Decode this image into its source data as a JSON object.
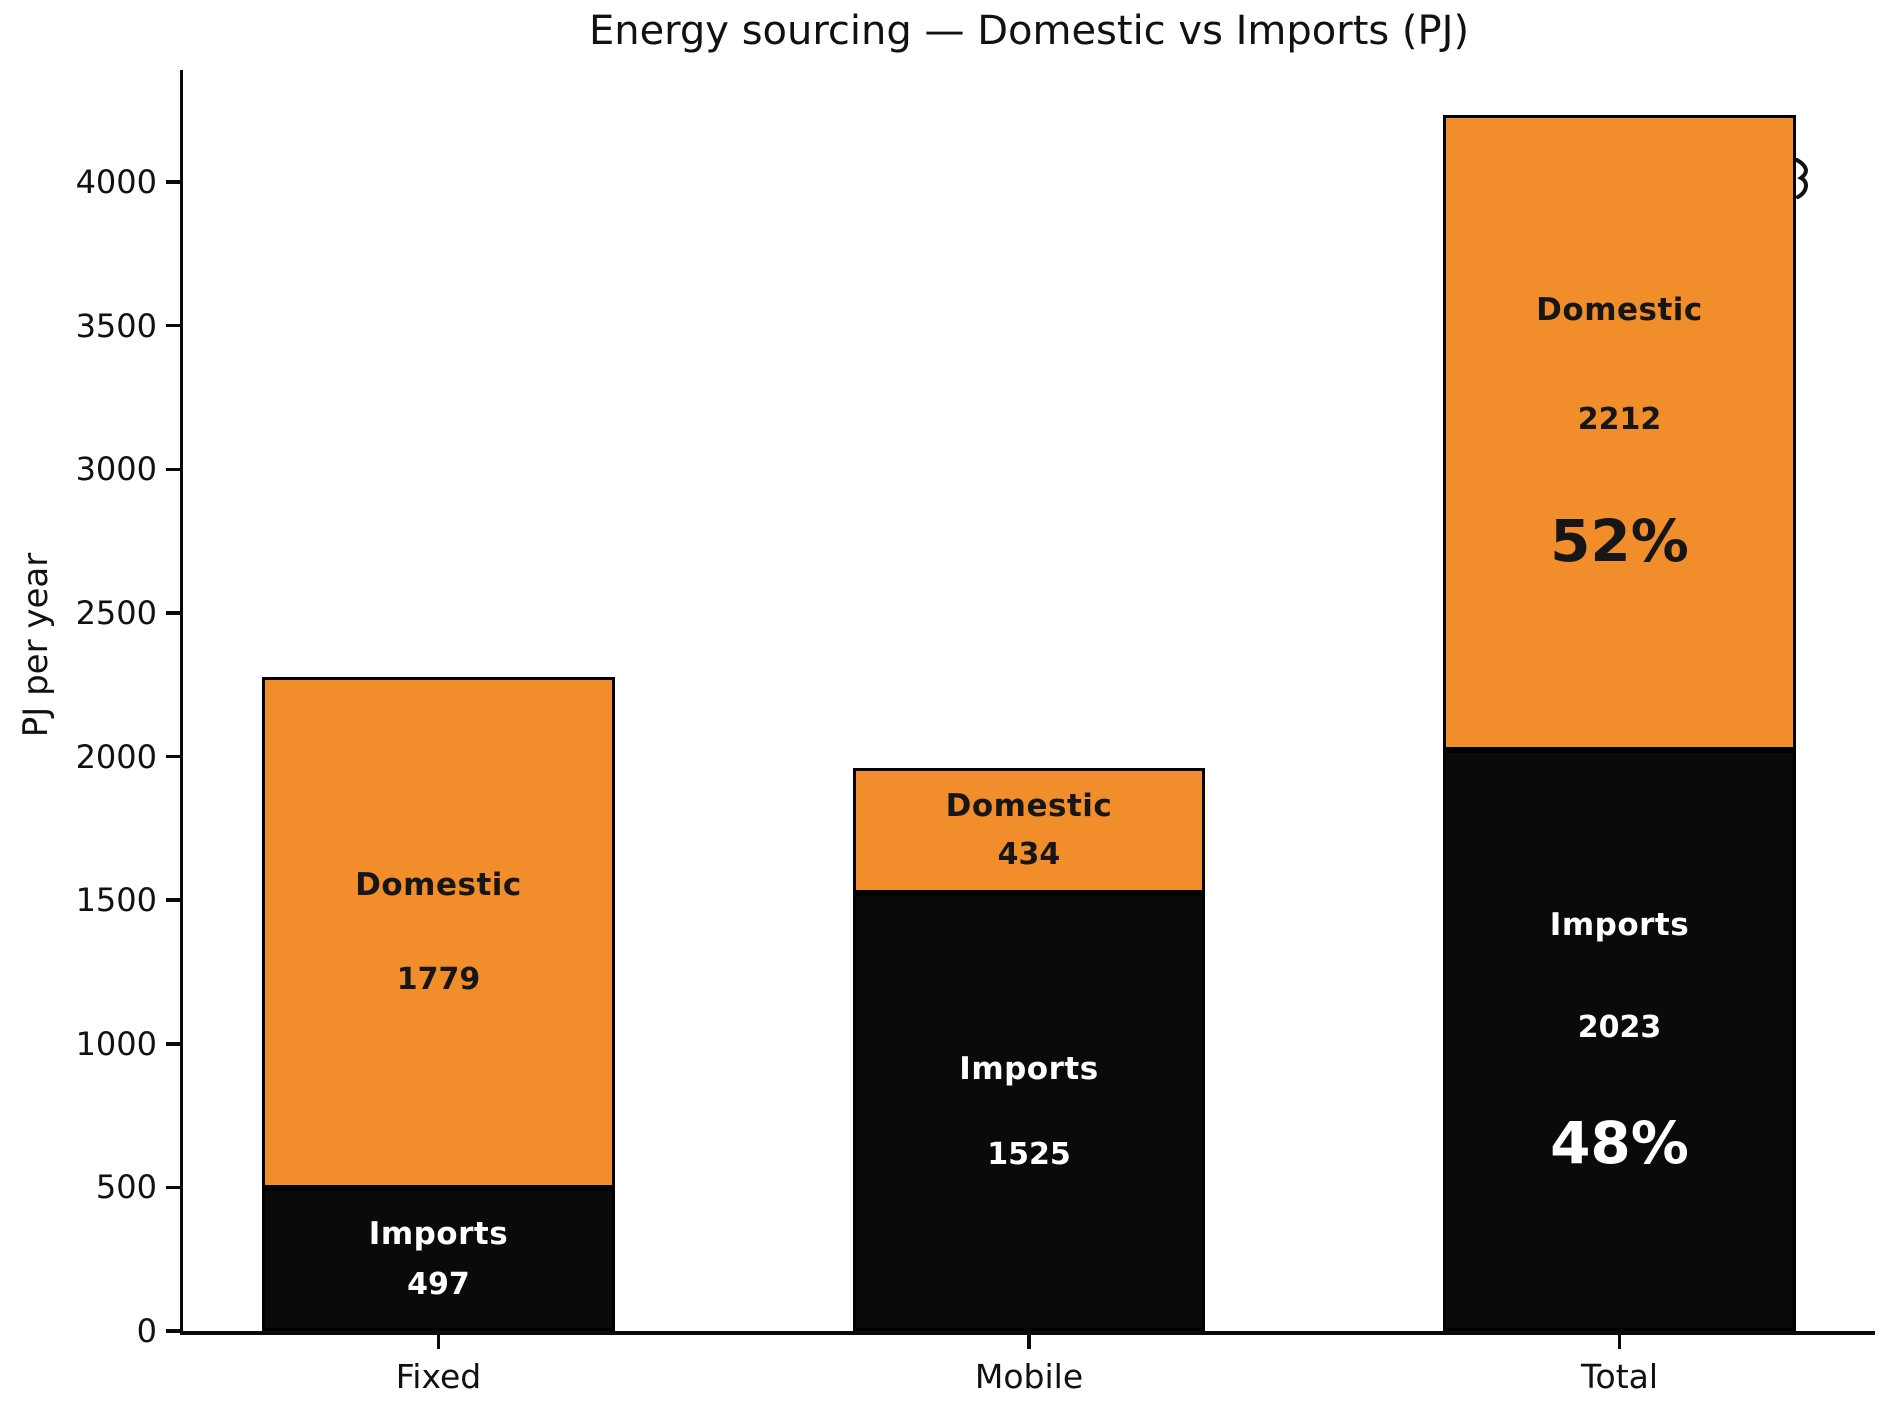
{
  "chart_data": {
    "type": "bar",
    "stacked": true,
    "title": "Energy sourcing — Domestic vs Imports (PJ)",
    "xlabel": "",
    "ylabel": "PJ per year",
    "categories": [
      "Fixed",
      "Mobile",
      "Total"
    ],
    "series": [
      {
        "name": "Imports",
        "color": "#0a0a0a",
        "text_color": "#ffffff",
        "values": [
          497,
          1525,
          2023
        ],
        "pct_labels": [
          "",
          "",
          "48%"
        ]
      },
      {
        "name": "Domestic",
        "color": "#f18e2b",
        "text_color": "#161616",
        "values": [
          1779,
          434,
          2212
        ],
        "pct_labels": [
          "",
          "",
          "52%"
        ]
      }
    ],
    "stack_totals": [
      2276,
      1959,
      4235
    ],
    "yticks": [
      0,
      500,
      1000,
      1500,
      2000,
      2500,
      3000,
      3500,
      4000
    ],
    "ylim": [
      0,
      4390
    ],
    "grid": false,
    "legend_position": "none",
    "label_style": "series name, value and percent printed inside each segment"
  }
}
